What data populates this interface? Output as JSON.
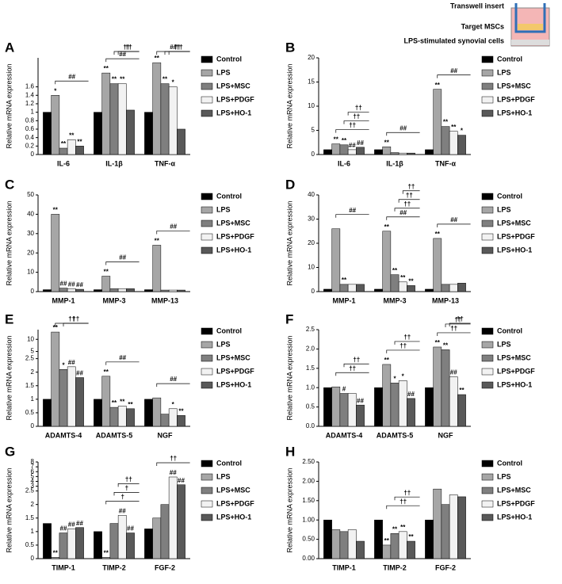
{
  "inset": {
    "labels": [
      "Transwell insert",
      "Target MSCs",
      "LPS-stimulated synovial cells"
    ]
  },
  "chart_data": [
    {
      "type": "bar",
      "label": "A",
      "y_label": "Relative mRNA expression",
      "categories": [
        "IL-6",
        "IL-1β",
        "TNF-α"
      ],
      "ylim": [
        0,
        8
      ],
      "break": [
        1.6,
        4
      ],
      "yticks": [
        0,
        0.2,
        0.4,
        0.6,
        0.8,
        1,
        1.2,
        1.4,
        1.6
      ],
      "series": [
        {
          "name": "Control",
          "color": "#000000",
          "values": [
            1,
            1,
            1
          ],
          "labels": [
            null,
            null,
            null
          ]
        },
        {
          "name": "LPS",
          "color": "#a6a6a6",
          "values": [
            1.4,
            5.5,
            7.2
          ],
          "labels": [
            "*",
            "**",
            "**"
          ]
        },
        {
          "name": "LPS+MSC",
          "color": "#7f7f7f",
          "values": [
            0.15,
            2.5,
            2.3
          ],
          "labels": [
            "**",
            "**",
            "**"
          ]
        },
        {
          "name": "LPS+PDGF",
          "color": "#f2f2f2",
          "values": [
            0.35,
            2.6,
            1.6
          ],
          "labels": [
            "**",
            "**",
            "*"
          ]
        },
        {
          "name": "LPS+HO-1",
          "color": "#595959",
          "values": [
            0.2,
            1.05,
            0.6
          ],
          "labels": [
            "**",
            null,
            null
          ]
        }
      ],
      "brackets": [
        [
          "##"
        ],
        [
          "##",
          "††",
          "††"
        ],
        [
          "##",
          "††",
          "††"
        ]
      ]
    },
    {
      "type": "bar",
      "label": "B",
      "y_label": "Relative mRNA expression",
      "categories": [
        "IL-6",
        "IL-1β",
        "TNF-α"
      ],
      "ylim": [
        0,
        20
      ],
      "yticks": [
        0,
        5,
        10,
        15,
        20
      ],
      "series": [
        {
          "name": "Control",
          "color": "#000000",
          "values": [
            1,
            1,
            1
          ],
          "labels": [
            null,
            null,
            null
          ]
        },
        {
          "name": "LPS",
          "color": "#a6a6a6",
          "values": [
            2.2,
            1.6,
            13.5
          ],
          "labels": [
            "**",
            "**",
            "**"
          ]
        },
        {
          "name": "LPS+MSC",
          "color": "#7f7f7f",
          "values": [
            2,
            0.4,
            5.8
          ],
          "labels": [
            "**",
            null,
            "**"
          ]
        },
        {
          "name": "LPS+PDGF",
          "color": "#f2f2f2",
          "values": [
            1,
            0.3,
            4.8
          ],
          "labels": [
            "##",
            null,
            "**"
          ]
        },
        {
          "name": "LPS+HO-1",
          "color": "#595959",
          "values": [
            1.5,
            0.3,
            4
          ],
          "labels": [
            "##",
            null,
            "*"
          ]
        }
      ],
      "brackets": [
        [
          "††",
          "††",
          "††"
        ],
        [
          "##"
        ],
        [
          "##"
        ]
      ]
    },
    {
      "type": "bar",
      "label": "C",
      "y_label": "Relative mRNA expression",
      "categories": [
        "MMP-1",
        "MMP-3",
        "MMP-13"
      ],
      "ylim": [
        0,
        50
      ],
      "yticks": [
        0,
        10,
        20,
        30,
        40,
        50
      ],
      "series": [
        {
          "name": "Control",
          "color": "#000000",
          "values": [
            1,
            1,
            1
          ],
          "labels": [
            null,
            null,
            null
          ]
        },
        {
          "name": "LPS",
          "color": "#a6a6a6",
          "values": [
            40,
            8,
            24
          ],
          "labels": [
            "**",
            "**",
            "**"
          ]
        },
        {
          "name": "LPS+MSC",
          "color": "#7f7f7f",
          "values": [
            1.8,
            1.5,
            0.8
          ],
          "labels": [
            "##",
            null,
            null
          ]
        },
        {
          "name": "LPS+PDGF",
          "color": "#f2f2f2",
          "values": [
            1.5,
            1.5,
            0.8
          ],
          "labels": [
            "##",
            null,
            null
          ]
        },
        {
          "name": "LPS+HO-1",
          "color": "#595959",
          "values": [
            1.2,
            1.5,
            0.8
          ],
          "labels": [
            "##",
            null,
            null
          ]
        }
      ],
      "brackets": [
        [],
        [
          "##"
        ],
        [
          "##"
        ]
      ]
    },
    {
      "type": "bar",
      "label": "D",
      "y_label": "Relative mRNA expression",
      "categories": [
        "MMP-1",
        "MMP-3",
        "MMP-13"
      ],
      "ylim": [
        0,
        40
      ],
      "yticks": [
        0,
        10,
        20,
        30,
        40
      ],
      "series": [
        {
          "name": "Control",
          "color": "#000000",
          "values": [
            1,
            1,
            1
          ],
          "labels": [
            null,
            null,
            null
          ]
        },
        {
          "name": "LPS",
          "color": "#a6a6a6",
          "values": [
            26,
            25,
            22
          ],
          "labels": [
            null,
            "**",
            "**"
          ]
        },
        {
          "name": "LPS+MSC",
          "color": "#7f7f7f",
          "values": [
            3,
            7,
            3
          ],
          "labels": [
            "**",
            "**",
            null
          ]
        },
        {
          "name": "LPS+PDGF",
          "color": "#f2f2f2",
          "values": [
            3,
            4,
            3
          ],
          "labels": [
            null,
            "**",
            null
          ]
        },
        {
          "name": "LPS+HO-1",
          "color": "#595959",
          "values": [
            3,
            2.5,
            3.5
          ],
          "labels": [
            null,
            "**",
            null
          ]
        }
      ],
      "brackets": [
        [
          "##"
        ],
        [
          "##",
          "††",
          "††",
          "††"
        ],
        [
          "##"
        ]
      ]
    },
    {
      "type": "bar",
      "label": "E",
      "y_label": "Relative mRNA expression",
      "categories": [
        "ADAMTS-4",
        "ADAMTS-5",
        "NGF"
      ],
      "ylim": [
        0,
        14
      ],
      "break": [
        2.5,
        4
      ],
      "yticks": [
        0,
        0.5,
        1,
        1.5,
        2,
        2.5,
        5,
        10
      ],
      "series": [
        {
          "name": "Control",
          "color": "#000000",
          "values": [
            1,
            1,
            1
          ],
          "labels": [
            null,
            null,
            null
          ]
        },
        {
          "name": "LPS",
          "color": "#a6a6a6",
          "values": [
            13,
            1.85,
            1.05
          ],
          "labels": [
            "**",
            "**",
            null
          ]
        },
        {
          "name": "LPS+MSC",
          "color": "#7f7f7f",
          "values": [
            2.1,
            0.7,
            0.45
          ],
          "labels": [
            "*",
            "**",
            null
          ]
        },
        {
          "name": "LPS+PDGF",
          "color": "#f2f2f2",
          "values": [
            2.2,
            0.75,
            0.65
          ],
          "labels": [
            "##",
            "**",
            "*"
          ]
        },
        {
          "name": "LPS+HO-1",
          "color": "#595959",
          "values": [
            1.8,
            0.65,
            0.4
          ],
          "labels": [
            "##",
            "**",
            "**"
          ]
        }
      ],
      "brackets": [
        [
          "††",
          "††"
        ],
        [
          "##"
        ],
        [
          "##"
        ]
      ]
    },
    {
      "type": "bar",
      "label": "F",
      "y_label": "Relative mRNA expression",
      "categories": [
        "ADAMTS-4",
        "ADAMTS-5",
        "NGF"
      ],
      "ylim": [
        0,
        2.5
      ],
      "yticks": [
        {
          "value": 0,
          "label": "0.0"
        },
        0.5,
        {
          "value": 1,
          "label": "1.0"
        },
        1.5,
        {
          "value": 2,
          "label": "2.0"
        },
        2.5
      ],
      "series": [
        {
          "name": "Control",
          "color": "#000000",
          "values": [
            1,
            1,
            1
          ],
          "labels": [
            null,
            null,
            null
          ]
        },
        {
          "name": "LPS",
          "color": "#a6a6a6",
          "values": [
            1.02,
            1.6,
            2.05
          ],
          "labels": [
            null,
            "**",
            "**"
          ]
        },
        {
          "name": "LPS+MSC",
          "color": "#7f7f7f",
          "values": [
            0.85,
            1.12,
            1.98
          ],
          "labels": [
            "#",
            "*",
            "**"
          ]
        },
        {
          "name": "LPS+PDGF",
          "color": "#f2f2f2",
          "values": [
            0.85,
            1.18,
            1.28
          ],
          "labels": [
            null,
            "*",
            "##"
          ]
        },
        {
          "name": "LPS+HO-1",
          "color": "#595959",
          "values": [
            0.55,
            0.72,
            0.82
          ],
          "labels": [
            "##",
            "##",
            "**"
          ]
        }
      ],
      "brackets": [
        [
          "††",
          "††"
        ],
        [
          "††",
          "††"
        ],
        [
          "††",
          "††",
          "††"
        ]
      ]
    },
    {
      "type": "bar",
      "label": "G",
      "y_label": "Relative mRNA expression",
      "categories": [
        "TIMP-1",
        "TIMP-2",
        "FGF-2"
      ],
      "ylim": [
        0,
        8
      ],
      "break": [
        2.5,
        3
      ],
      "yticks": [
        0,
        0.5,
        1,
        1.5,
        2,
        2.5,
        3,
        4,
        5,
        6,
        7,
        8
      ],
      "series": [
        {
          "name": "Control",
          "color": "#000000",
          "values": [
            1.3,
            1,
            1.1
          ],
          "labels": [
            null,
            null,
            null
          ]
        },
        {
          "name": "LPS",
          "color": "#a6a6a6",
          "values": [
            0.05,
            0.05,
            1.5
          ],
          "labels": [
            "**",
            "**",
            null
          ]
        },
        {
          "name": "LPS+MSC",
          "color": "#7f7f7f",
          "values": [
            0.95,
            1.3,
            2
          ],
          "labels": [
            "##",
            null,
            null
          ]
        },
        {
          "name": "LPS+PDGF",
          "color": "#f2f2f2",
          "values": [
            1.1,
            1.6,
            4.9
          ],
          "labels": [
            "##",
            "##",
            "##"
          ]
        },
        {
          "name": "LPS+HO-1",
          "color": "#595959",
          "values": [
            1.15,
            0.95,
            3.3
          ],
          "labels": [
            "##",
            "##",
            "##"
          ]
        }
      ],
      "brackets": [
        [],
        [
          "†",
          "†",
          "††"
        ],
        [
          "††"
        ]
      ]
    },
    {
      "type": "bar",
      "label": "H",
      "y_label": "Relative mRNA expression",
      "categories": [
        "TIMP-1",
        "TIMP-2",
        "FGF-2"
      ],
      "ylim": [
        0,
        2.5
      ],
      "yticks": [
        {
          "value": 0,
          "label": "0.00"
        },
        {
          "value": 0.5,
          "label": "0.50"
        },
        {
          "value": 1,
          "label": "1.00"
        },
        {
          "value": 1.5,
          "label": "1.50"
        },
        {
          "value": 2,
          "label": "2.00"
        },
        {
          "value": 2.5,
          "label": "2.50"
        }
      ],
      "series": [
        {
          "name": "Control",
          "color": "#000000",
          "values": [
            1,
            1,
            1
          ],
          "labels": [
            null,
            null,
            null
          ]
        },
        {
          "name": "LPS",
          "color": "#a6a6a6",
          "values": [
            0.75,
            0.35,
            1.8
          ],
          "labels": [
            null,
            "**",
            null
          ]
        },
        {
          "name": "LPS+MSC",
          "color": "#7f7f7f",
          "values": [
            0.7,
            0.65,
            1.4
          ],
          "labels": [
            null,
            "**",
            null
          ]
        },
        {
          "name": "LPS+PDGF",
          "color": "#f2f2f2",
          "values": [
            0.75,
            0.7,
            1.65
          ],
          "labels": [
            null,
            "**",
            null
          ]
        },
        {
          "name": "LPS+HO-1",
          "color": "#595959",
          "values": [
            0.45,
            0.45,
            1.6
          ],
          "labels": [
            null,
            "**",
            null
          ]
        }
      ],
      "brackets": [
        [],
        [
          "††",
          "††"
        ],
        []
      ]
    }
  ]
}
